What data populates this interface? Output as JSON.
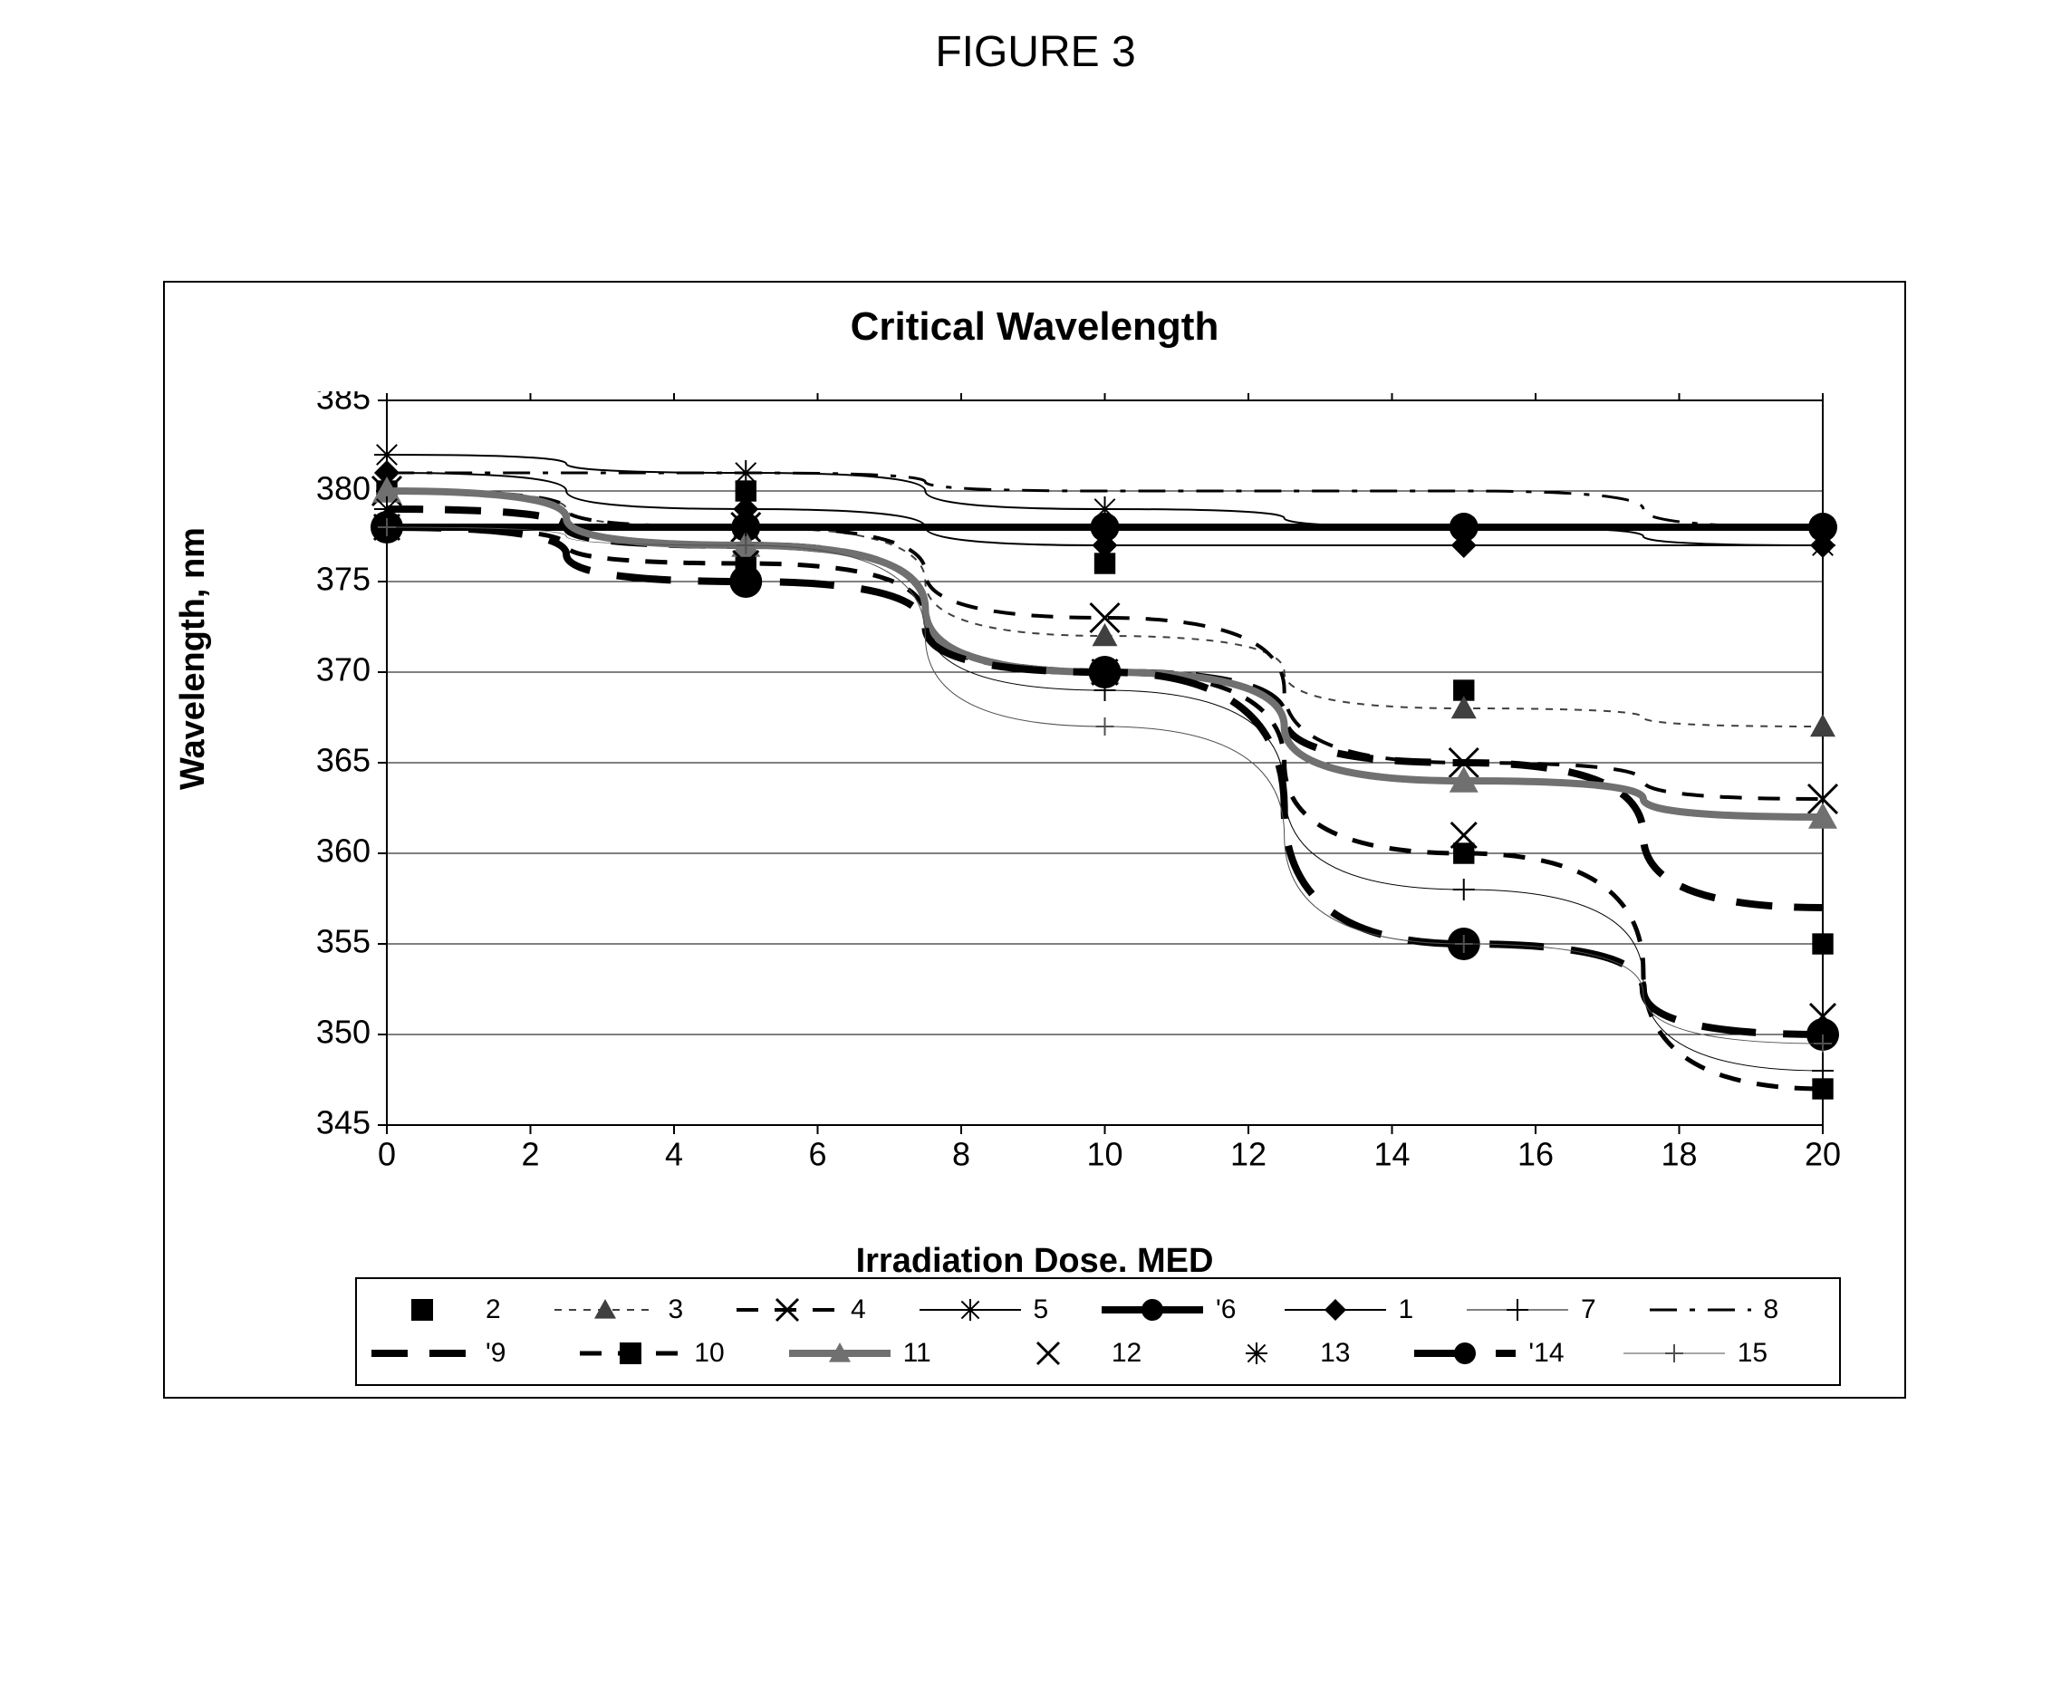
{
  "figure_label": "FIGURE 3",
  "chart": {
    "type": "line",
    "title": "Critical Wavelength",
    "xlabel": "Irradiation Dose. MED",
    "ylabel": "Wavelength, nm",
    "xlim": [
      0,
      20
    ],
    "ylim": [
      345,
      385
    ],
    "xtick_step": 2,
    "ytick_step": 5,
    "tick_fontsize": 36,
    "label_fontsize": 38,
    "title_fontsize": 44,
    "background_color": "#ffffff",
    "grid_color": "#000000",
    "grid_linewidth": 1,
    "plotarea_bg": "#ffffff",
    "x_markers": [
      0,
      5,
      10,
      15,
      20
    ],
    "series": [
      {
        "id": "2",
        "label": "2",
        "values": [
          380,
          380,
          376,
          369,
          355
        ],
        "color": "#000000",
        "line_style": "none",
        "line_width": 0,
        "marker": "square-filled",
        "marker_size": 14
      },
      {
        "id": "3",
        "label": "3",
        "values": [
          380,
          378,
          372,
          368,
          367
        ],
        "color": "#404040",
        "line_style": "dash",
        "line_width": 2,
        "marker": "triangle-filled",
        "marker_size": 14
      },
      {
        "id": "4",
        "label": "4",
        "values": [
          380,
          378,
          373,
          365,
          363
        ],
        "color": "#000000",
        "line_style": "wide-dash",
        "line_width": 4,
        "marker": "x",
        "marker_size": 16
      },
      {
        "id": "5",
        "label": "5",
        "values": [
          382,
          381,
          379,
          378,
          377
        ],
        "color": "#000000",
        "line_style": "solid",
        "line_width": 2,
        "marker": "asterisk",
        "marker_size": 14
      },
      {
        "id": "6",
        "label": "'6",
        "values": [
          378,
          378,
          378,
          378,
          378
        ],
        "color": "#000000",
        "line_style": "solid",
        "line_width": 8,
        "marker": "circle-filled",
        "marker_size": 16
      },
      {
        "id": "1",
        "label": "1",
        "values": [
          381,
          379,
          377,
          377,
          377
        ],
        "color": "#000000",
        "line_style": "solid",
        "line_width": 2,
        "marker": "diamond-filled",
        "marker_size": 14
      },
      {
        "id": "7",
        "label": "7",
        "values": [
          380,
          377,
          369,
          358,
          348
        ],
        "color": "#000000",
        "line_style": "solid",
        "line_width": 1,
        "marker": "plus",
        "marker_size": 12
      },
      {
        "id": "8",
        "label": "8",
        "values": [
          381,
          381,
          380,
          380,
          378
        ],
        "color": "#000000",
        "line_style": "dash-dot",
        "line_width": 3,
        "marker": "none",
        "marker_size": 0
      },
      {
        "id": "9",
        "label": "'9",
        "values": [
          379,
          377,
          370,
          365,
          357
        ],
        "color": "#000000",
        "line_style": "long-dash",
        "line_width": 8,
        "marker": "none",
        "marker_size": 0
      },
      {
        "id": "10",
        "label": "10",
        "values": [
          378,
          376,
          370,
          360,
          347
        ],
        "color": "#000000",
        "line_style": "wide-dash",
        "line_width": 5,
        "marker": "square-filled",
        "marker_size": 14
      },
      {
        "id": "11",
        "label": "11",
        "values": [
          380,
          377,
          370,
          364,
          362
        ],
        "color": "#707070",
        "line_style": "solid",
        "line_width": 8,
        "marker": "triangle-filled",
        "marker_size": 16
      },
      {
        "id": "12",
        "label": "12",
        "values": [
          378,
          376,
          370,
          361,
          351
        ],
        "color": "#000000",
        "line_style": "none",
        "line_width": 0,
        "marker": "x",
        "marker_size": 14
      },
      {
        "id": "13",
        "label": "13",
        "values": [
          379,
          378,
          378,
          378,
          378
        ],
        "color": "#000000",
        "line_style": "none",
        "line_width": 0,
        "marker": "asterisk",
        "marker_size": 14
      },
      {
        "id": "14",
        "label": "'14",
        "values": [
          378,
          375,
          370,
          355,
          350
        ],
        "color": "#000000",
        "line_style": "very-long-dash",
        "line_width": 8,
        "marker": "circle-filled",
        "marker_size": 18
      },
      {
        "id": "15",
        "label": "15",
        "values": [
          378,
          377,
          367,
          355,
          349.5
        ],
        "color": "#505050",
        "line_style": "solid",
        "line_width": 1,
        "marker": "plus",
        "marker_size": 10
      }
    ],
    "legend": {
      "rows": [
        [
          "2",
          "3",
          "4",
          "5",
          "6",
          "1",
          "7",
          "8"
        ],
        [
          "9",
          "10",
          "11",
          "12",
          "13",
          "14",
          "15"
        ]
      ],
      "border_color": "#000000",
      "fontsize": 30
    }
  }
}
